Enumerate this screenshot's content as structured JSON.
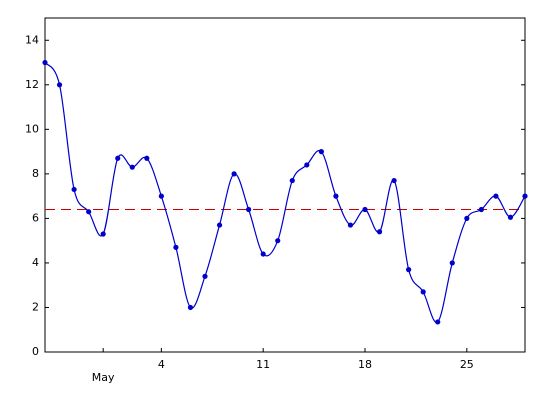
{
  "chart_data": {
    "type": "line",
    "x": [
      0,
      1,
      2,
      3,
      4,
      5,
      6,
      7,
      8,
      9,
      10,
      11,
      12,
      13,
      14,
      15,
      16,
      17,
      18,
      19,
      20,
      21,
      22,
      23,
      24,
      25,
      26,
      27,
      28,
      29,
      30,
      31,
      32,
      33
    ],
    "series": [
      {
        "color": "#0000cc",
        "values": [
          13,
          12,
          7.3,
          6.3,
          5.3,
          8.7,
          8.3,
          8.7,
          7,
          4.7,
          2,
          3.4,
          5.7,
          8,
          6.4,
          4.4,
          5,
          7.7,
          8.4,
          9,
          7,
          5.7,
          6.4,
          5.4,
          7.7,
          3.7,
          2.7,
          1.35,
          4,
          6,
          6.4,
          7,
          6.05,
          7
        ]
      }
    ],
    "reference_line": {
      "value": 6.4,
      "color": "#cc0000"
    },
    "xlim": [
      0,
      33
    ],
    "xticks": [
      {
        "value": 4,
        "label": "May"
      },
      {
        "value": 8,
        "label": "4"
      },
      {
        "value": 15,
        "label": "11"
      },
      {
        "value": 22,
        "label": "18"
      },
      {
        "value": 29,
        "label": "25"
      }
    ],
    "ylim": [
      0,
      15
    ],
    "yticks": [
      0,
      2,
      4,
      6,
      8,
      10,
      12,
      14
    ],
    "grid": false
  }
}
